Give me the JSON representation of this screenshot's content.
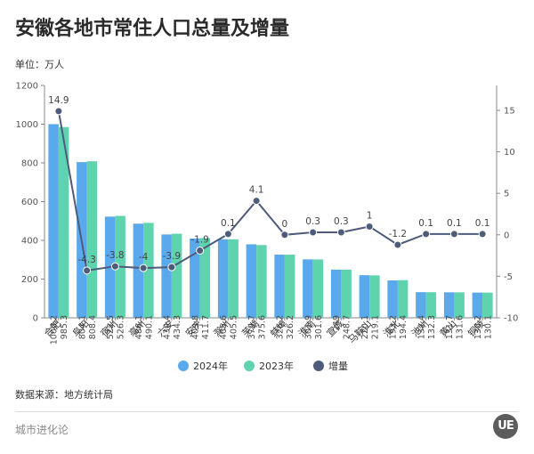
{
  "header": {
    "title": "安徽各地市常住人口总量及增量"
  },
  "unit_label": "单位：万人",
  "source_label": "数据来源：地方统计局",
  "brand": {
    "name": "城市进化论",
    "logo_text": "UE"
  },
  "colors": {
    "series_2024": "#5aa9ec",
    "series_2023": "#5fd3ad",
    "series_delta": "#4f5b7a"
  },
  "chart_data": {
    "type": "bar+line",
    "title": "安徽各地市常住人口总量及增量",
    "ylabel_left": "单位：万人",
    "ylim_left": [
      0,
      1200
    ],
    "yticks_left": [
      0,
      200,
      400,
      600,
      800,
      1000,
      1200
    ],
    "ylim_right": [
      -10,
      18
    ],
    "yticks_right": [
      -10,
      -5,
      0,
      5,
      10,
      15
    ],
    "categories": [
      "合肥",
      "阜阳",
      "宿州",
      "亳州",
      "六安",
      "安庆",
      "滁州",
      "芜湖",
      "蚌埠",
      "淮南",
      "宣城",
      "马鞍山",
      "淮北",
      "池州",
      "黄山",
      "铜陵"
    ],
    "series": [
      {
        "name": "2024年",
        "axis": "left",
        "kind": "bar",
        "values": [
          1000.2,
          804.1,
          522.5,
          486.1,
          430.4,
          409.8,
          405.6,
          379.7,
          326.2,
          301.9,
          249,
          220.1,
          193.2,
          132.4,
          131.7,
          130.2
        ],
        "labels": [
          "1000.2",
          "804.1",
          "522.5",
          "486.1",
          "430.4",
          "409.8",
          "405.6",
          "379.7",
          "326.2",
          "301.9",
          "249",
          "220.1",
          "193.2",
          "132.4",
          "131.7",
          "130.2"
        ]
      },
      {
        "name": "2023年",
        "axis": "left",
        "kind": "bar",
        "values": [
          985.3,
          808.4,
          526.3,
          490.1,
          434.3,
          411.7,
          405.5,
          375.6,
          326.2,
          301.6,
          248.7,
          219.1,
          194.4,
          132.3,
          131.6,
          130.1
        ],
        "labels": [
          "985.3",
          "808.4",
          "526.3",
          "490.1",
          "434.3",
          "411.7",
          "405.5",
          "375.6",
          "326.2",
          "301.6",
          "248.7",
          "219.1",
          "194.4",
          "132.3",
          "131.6",
          "130.1"
        ]
      },
      {
        "name": "增量",
        "axis": "right",
        "kind": "line",
        "values": [
          14.9,
          -4.3,
          -3.8,
          -4,
          -3.9,
          -1.9,
          0.1,
          4.1,
          0,
          0.3,
          0.3,
          1,
          -1.2,
          0.1,
          0.1,
          0.1
        ],
        "labels": [
          "14.9",
          "-4.3",
          "-3.8",
          "-4",
          "-3.9",
          "-1.9",
          "0.1",
          "4.1",
          "0",
          "0.3",
          "0.3",
          "1",
          "-1.2",
          "0.1",
          "0.1",
          "0.1"
        ]
      }
    ],
    "legend": [
      "2024年",
      "2023年",
      "增量"
    ]
  }
}
